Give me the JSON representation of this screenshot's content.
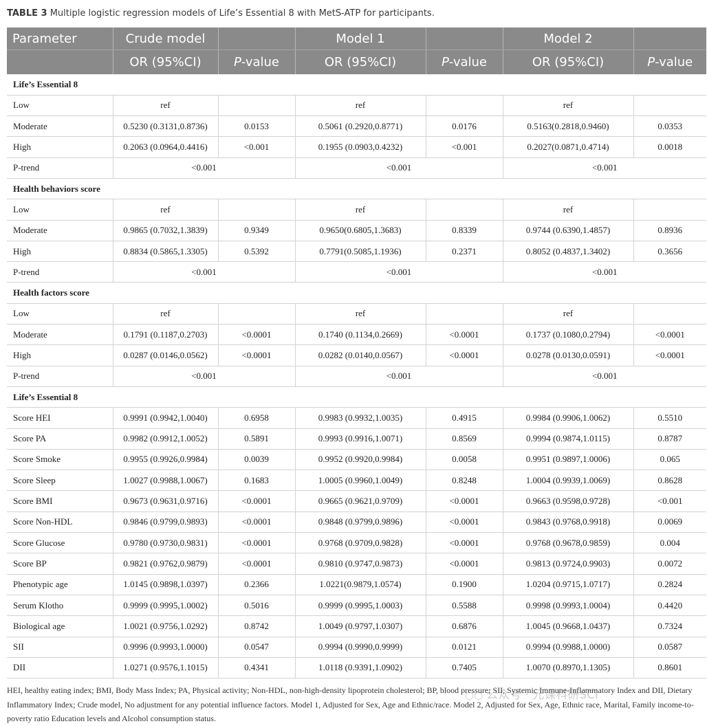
{
  "caption": {
    "label": "TABLE 3",
    "text": "Multiple logistic regression models of Life’s Essential 8 with MetS-ATP for participants."
  },
  "header": {
    "parameter": "Parameter",
    "crude": "Crude model",
    "model1": "Model 1",
    "model2": "Model 2",
    "or_label": "OR (95%CI)",
    "p_italic": "P",
    "p_rest": "-value"
  },
  "sections": [
    {
      "title": "Life’s Essential 8",
      "rows": [
        {
          "label": "Low",
          "v": [
            "ref",
            "",
            "ref",
            "",
            "ref",
            ""
          ]
        },
        {
          "label": "Moderate",
          "v": [
            "0.5230 (0.3131,0.8736)",
            "0.0153",
            "0.5061 (0.2920,0.8771)",
            "0.0176",
            "0.5163(0.2818,0.9460)",
            "0.0353"
          ]
        },
        {
          "label": "High",
          "v": [
            "0.2063 (0.0964,0.4416)",
            "<0.001",
            "0.1955 (0.0903,0.4232)",
            "<0.001",
            "0.2027(0.0871,0.4714)",
            "0.0018"
          ]
        }
      ],
      "ptrend": {
        "label": "P-trend",
        "v": [
          "<0.001",
          "<0.001",
          "<0.001"
        ]
      }
    },
    {
      "title": "Health behaviors score",
      "rows": [
        {
          "label": "Low",
          "v": [
            "ref",
            "",
            "ref",
            "",
            "ref",
            ""
          ]
        },
        {
          "label": "Moderate",
          "v": [
            "0.9865 (0.7032,1.3839)",
            "0.9349",
            "0.9650(0.6805,1.3683)",
            "0.8339",
            "0.9744 (0.6390,1.4857)",
            "0.8936"
          ]
        },
        {
          "label": "High",
          "v": [
            "0.8834 (0.5865,1.3305)",
            "0.5392",
            "0.7791(0.5085,1.1936)",
            "0.2371",
            "0.8052 (0.4837,1.3402)",
            "0.3656"
          ]
        }
      ],
      "ptrend": {
        "label": "P-trend",
        "v": [
          "<0.001",
          "<0.001",
          "<0.001"
        ]
      }
    },
    {
      "title": "Health factors score",
      "rows": [
        {
          "label": "Low",
          "v": [
            "ref",
            "",
            "ref",
            "",
            "ref",
            ""
          ]
        },
        {
          "label": "Moderate",
          "v": [
            "0.1791 (0.1187,0.2703)",
            "<0.0001",
            "0.1740 (0.1134,0.2669)",
            "<0.0001",
            "0.1737 (0.1080,0.2794)",
            "<0.0001"
          ]
        },
        {
          "label": "High",
          "v": [
            "0.0287 (0.0146,0.0562)",
            "<0.0001",
            "0.0282 (0.0140,0.0567)",
            "<0.0001",
            "0.0278 (0.0130,0.0591)",
            "<0.0001"
          ]
        }
      ],
      "ptrend": {
        "label": "P-trend",
        "v": [
          "<0.001",
          "<0.001",
          "<0.001"
        ]
      }
    },
    {
      "title": "Life’s Essential 8",
      "rows": [
        {
          "label": "Score HEI",
          "v": [
            "0.9991 (0.9942,1.0040)",
            "0.6958",
            "0.9983 (0.9932,1.0035)",
            "0.4915",
            "0.9984 (0.9906,1.0062)",
            "0.5510"
          ]
        },
        {
          "label": "Score PA",
          "v": [
            "0.9982 (0.9912,1.0052)",
            "0.5891",
            "0.9993 (0.9916,1.0071)",
            "0.8569",
            "0.9994 (0.9874,1.0115)",
            "0.8787"
          ]
        },
        {
          "label": "Score Smoke",
          "v": [
            "0.9955 (0.9926,0.9984)",
            "0.0039",
            "0.9952 (0.9920,0.9984)",
            "0.0058",
            "0.9951 (0.9897,1.0006)",
            "0.065"
          ]
        },
        {
          "label": "Score Sleep",
          "v": [
            "1.0027 (0.9988,1.0067)",
            "0.1683",
            "1.0005 (0.9960,1.0049)",
            "0.8248",
            "1.0004 (0.9939,1.0069)",
            "0.8628"
          ]
        },
        {
          "label": "Score BMI",
          "v": [
            "0.9673 (0.9631,0.9716)",
            "<0.0001",
            "0.9665 (0.9621,0.9709)",
            "<0.0001",
            "0.9663 (0.9598,0.9728)",
            "<0.001"
          ]
        },
        {
          "label": "Score Non-HDL",
          "v": [
            "0.9846 (0.9799,0.9893)",
            "<0.0001",
            "0.9848 (0.9799,0.9896)",
            "<0.0001",
            "0.9843 (0.9768,0.9918)",
            "0.0069"
          ]
        },
        {
          "label": "Score Glucose",
          "v": [
            "0.9780 (0.9730,0.9831)",
            "<0.0001",
            "0.9768 (0.9709,0.9828)",
            "<0.0001",
            "0.9768 (0.9678,0.9859)",
            "0.004"
          ]
        },
        {
          "label": "Score BP",
          "v": [
            "0.9821 (0.9762,0.9879)",
            "<0.0001",
            "0.9810 (0.9747,0.9873)",
            "<0.0001",
            "0.9813 (0.9724,0.9903)",
            "0.0072"
          ]
        },
        {
          "label": "Phenotypic age",
          "v": [
            "1.0145 (0.9898,1.0397)",
            "0.2366",
            "1.0221(0.9879,1.0574)",
            "0.1900",
            "1.0204 (0.9715,1.0717)",
            "0.2824"
          ]
        },
        {
          "label": "Serum Klotho",
          "v": [
            "0.9999 (0.9995,1.0002)",
            "0.5016",
            "0.9999 (0.9995,1.0003)",
            "0.5588",
            "0.9998 (0.9993,1.0004)",
            "0.4420"
          ]
        },
        {
          "label": "Biological age",
          "v": [
            "1.0021 (0.9756,1.0292)",
            "0.8742",
            "1.0049 (0.9797,1.0307)",
            "0.6876",
            "1.0045 (0.9668,1.0437)",
            "0.7324"
          ]
        },
        {
          "label": "SII",
          "v": [
            "0.9996 (0.9993,1.0000)",
            "0.0547",
            "0.9994 (0.9990,0.9999)",
            "0.0121",
            "0.9994 (0.9988,1.0000)",
            "0.0587"
          ]
        },
        {
          "label": "DII",
          "v": [
            "1.0271 (0.9576,1.1015)",
            "0.4341",
            "1.0118 (0.9391,1.0902)",
            "0.7405",
            "1.0070 (0.8970,1.1305)",
            "0.8601"
          ]
        }
      ]
    }
  ],
  "footnote": "HEI, healthy eating index; BMI, Body Mass Index; PA, Physical activity; Non-HDL, non-high-density lipoprotein cholesterol; BP, blood pressure; SII, Systemic Immune-Inflammatory Index and DII, Dietary Inflammatory Index; Crude model, No adjustment for any potential influence factors. Model 1, Adjusted for Sex, Age and Ethnic/race. Model 2, Adjusted for Sex, Age, Ethnic race, Marital, Family income-to-poverty ratio Education levels and Alcohol consumption status.",
  "watermark": {
    "icon": "wechat-icon",
    "text": "公众号 · 元课科研SCI"
  }
}
